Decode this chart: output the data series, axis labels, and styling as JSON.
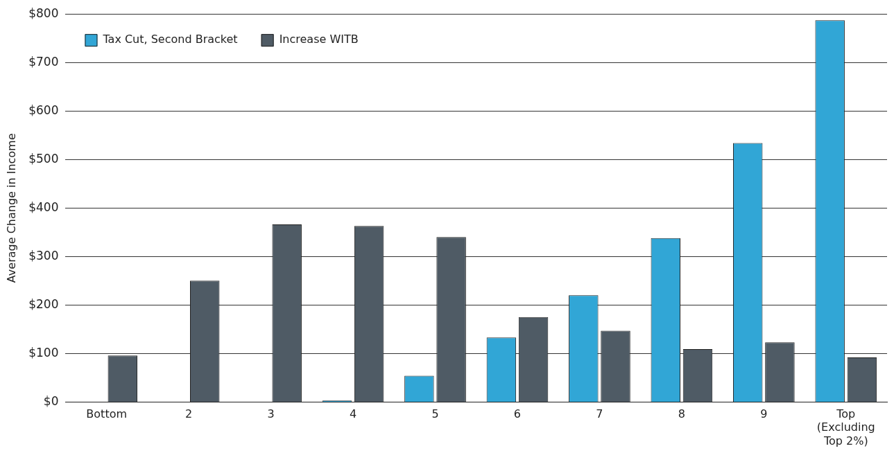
{
  "chart_data": {
    "type": "bar",
    "ylabel": "Average Change in Income",
    "categories": [
      "Bottom",
      "2",
      "3",
      "4",
      "5",
      "6",
      "7",
      "8",
      "9",
      "Top (Excluding Top 2%)"
    ],
    "series": [
      {
        "name": "Tax Cut, Second Bracket",
        "color": "#31a6d6",
        "values": [
          0,
          0,
          0,
          3,
          54,
          133,
          220,
          338,
          534,
          787
        ]
      },
      {
        "name": "Increase WITB",
        "color": "#4f5b65",
        "values": [
          96,
          250,
          366,
          363,
          340,
          175,
          147,
          109,
          123,
          92
        ]
      }
    ],
    "ylim": [
      0,
      800
    ],
    "yticks": [
      {
        "value": 0,
        "label": "$0"
      },
      {
        "value": 100,
        "label": "$100"
      },
      {
        "value": 200,
        "label": "$200"
      },
      {
        "value": 300,
        "label": "$300"
      },
      {
        "value": 400,
        "label": "$400"
      },
      {
        "value": 500,
        "label": "$500"
      },
      {
        "value": 600,
        "label": "$600"
      },
      {
        "value": 700,
        "label": "$700"
      },
      {
        "value": 800,
        "label": "$800"
      }
    ],
    "grid": "y",
    "legend": "top left"
  }
}
